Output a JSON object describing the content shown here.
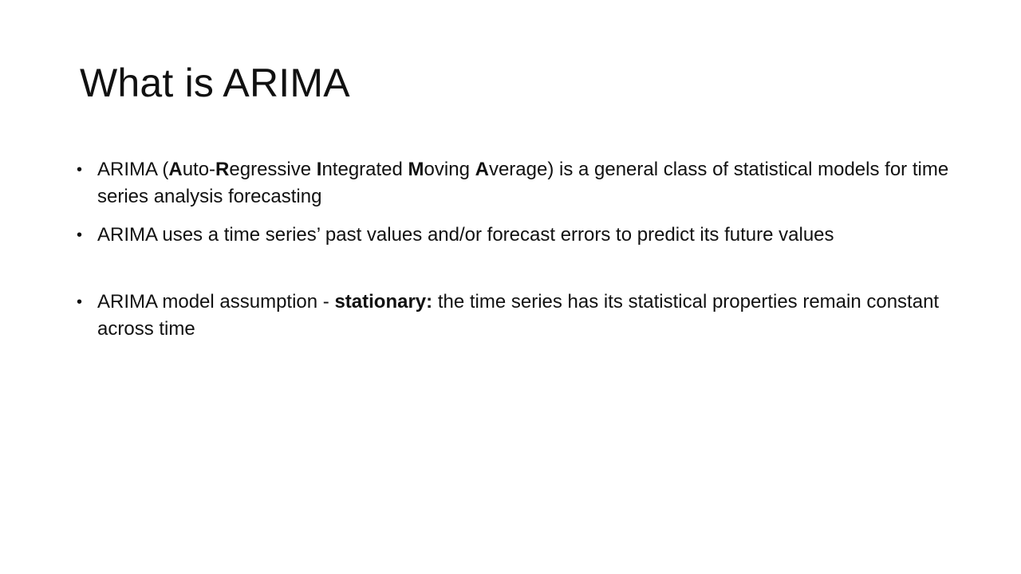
{
  "slide": {
    "title": "What is ARIMA",
    "bullet_glyph": "•",
    "bullets": [
      {
        "segments": [
          {
            "text": "ARIMA (",
            "bold": false
          },
          {
            "text": "A",
            "bold": true
          },
          {
            "text": "uto-",
            "bold": false
          },
          {
            "text": "R",
            "bold": true
          },
          {
            "text": "egressive ",
            "bold": false
          },
          {
            "text": "I",
            "bold": true
          },
          {
            "text": "ntegrated ",
            "bold": false
          },
          {
            "text": "M",
            "bold": true
          },
          {
            "text": "oving ",
            "bold": false
          },
          {
            "text": "A",
            "bold": true
          },
          {
            "text": "verage) is a general class of statistical models for time series analysis forecasting",
            "bold": false
          }
        ]
      },
      {
        "segments": [
          {
            "text": "ARIMA uses a time series’ past values and/or forecast errors to predict its future values",
            "bold": false
          }
        ]
      },
      {
        "segments": [
          {
            "text": "ARIMA model assumption - ",
            "bold": false
          },
          {
            "text": "stationary:",
            "bold": true
          },
          {
            "text": " the time series has its statistical properties remain constant across time",
            "bold": false
          }
        ]
      }
    ]
  }
}
